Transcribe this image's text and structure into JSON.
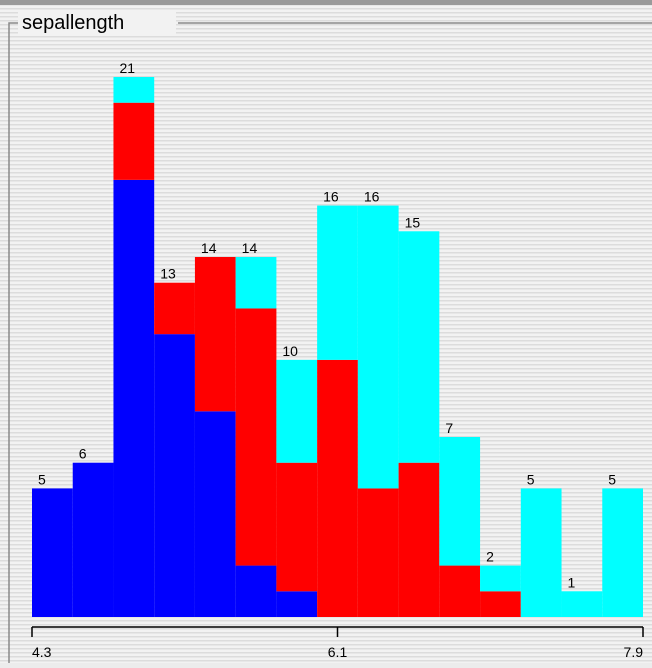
{
  "chart_data": {
    "type": "histogram",
    "title": "sepallength",
    "bins": [
      4.3,
      4.54,
      4.78,
      5.02,
      5.26,
      5.5,
      5.74,
      5.98,
      6.22,
      6.46,
      6.7,
      6.94,
      7.18,
      7.42,
      7.66,
      7.9
    ],
    "series": [
      {
        "color": "#0000ff",
        "values": [
          5,
          6,
          17,
          11,
          8,
          2,
          1,
          0,
          0,
          0,
          0,
          0,
          0,
          0,
          0
        ]
      },
      {
        "color": "#ff0000",
        "values": [
          0,
          0,
          3,
          2,
          6,
          10,
          5,
          10,
          5,
          6,
          2,
          1,
          0,
          0,
          0
        ]
      },
      {
        "color": "#00ffff",
        "values": [
          0,
          0,
          1,
          0,
          0,
          2,
          4,
          6,
          11,
          9,
          5,
          1,
          5,
          1,
          5
        ]
      }
    ],
    "totals": [
      5,
      6,
      21,
      13,
      14,
      14,
      10,
      16,
      16,
      15,
      7,
      2,
      5,
      1,
      5
    ],
    "xlim": [
      4.3,
      7.9
    ],
    "xticks": [
      4.3,
      6.1,
      7.9
    ],
    "ylim": [
      0,
      21
    ]
  }
}
